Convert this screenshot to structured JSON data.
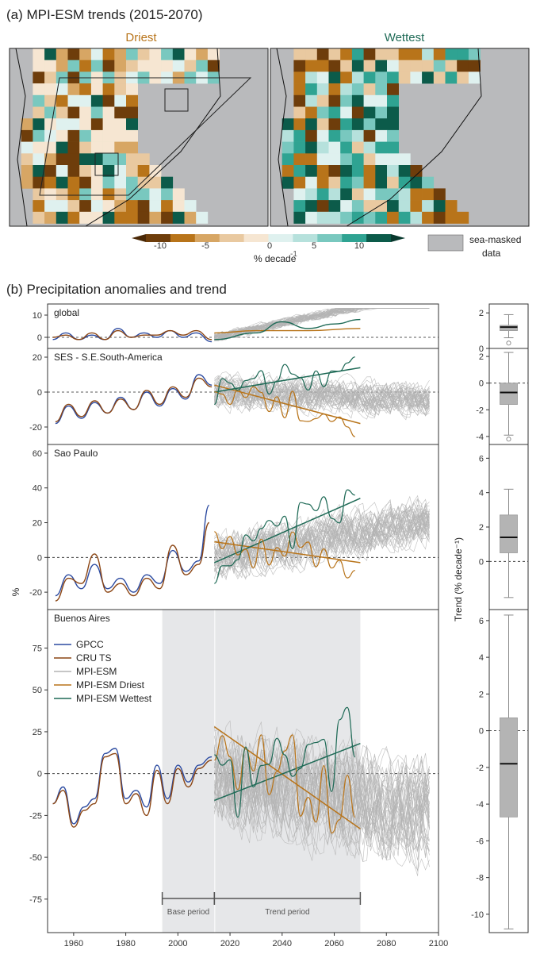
{
  "panel_a": {
    "title": "(a) MPI-ESM trends (2015-2070)",
    "map_titles": [
      "Driest",
      "Wettest"
    ],
    "colorbar": {
      "ticks": [
        "-10",
        "-5",
        "0",
        "5",
        "10"
      ],
      "label": "% decade",
      "label_exp": "-1",
      "sea_label_1": "sea-masked",
      "sea_label_2": "data"
    }
  },
  "panel_b": {
    "title": "(b) Precipitation anomalies and trend",
    "y_label": "%",
    "right_y_label": "Trend (% decade⁻¹)",
    "period_labels": {
      "base": "Base period",
      "trend": "Trend period"
    }
  },
  "colors": {
    "gpcc": "#2b4aa0",
    "cru": "#8b4513",
    "ensemble": "#b4b4b4",
    "driest": "#b8741a",
    "wettest": "#1e6a56",
    "sea": "#b9babc"
  },
  "chart_data": [
    {
      "type": "line",
      "title": "global",
      "x_range": [
        1950,
        2100
      ],
      "ylim": [
        -5,
        15
      ],
      "yticks": [
        0,
        10
      ],
      "series": [
        {
          "name": "GPCC",
          "x": [
            1952,
            1957,
            1962,
            1967,
            1972,
            1977,
            1982,
            1987,
            1992,
            1997,
            2002,
            2007,
            2013
          ],
          "y": [
            -1,
            2,
            -1,
            1,
            -1,
            4,
            0,
            2,
            0,
            3,
            0,
            2,
            -2
          ]
        },
        {
          "name": "CRU TS",
          "x": [
            1952,
            1957,
            1962,
            1967,
            1972,
            1977,
            1982,
            1987,
            1992,
            1997,
            2002,
            2007,
            2013
          ],
          "y": [
            0,
            1,
            -1,
            2,
            -1,
            3,
            0,
            1,
            1,
            3,
            1,
            3,
            -1
          ]
        },
        {
          "name": "MPI-ESM Driest",
          "x": [
            2014,
            2030,
            2050,
            2070
          ],
          "y": [
            2,
            3,
            3,
            4
          ]
        },
        {
          "name": "MPI-ESM Wettest",
          "x": [
            2014,
            2030,
            2040,
            2050,
            2060,
            2070
          ],
          "y": [
            -1,
            2,
            7,
            4,
            6,
            8
          ]
        }
      ],
      "boxplot": {
        "ylim": [
          0,
          2.5
        ],
        "yticks": [
          0,
          2
        ],
        "whisker_low": 0.6,
        "q1": 1.0,
        "median": 1.2,
        "q3": 1.3,
        "whisker_high": 1.9,
        "outliers": [
          0.3
        ]
      }
    },
    {
      "type": "line",
      "title": "SES - S.E.South-America",
      "x_range": [
        1950,
        2100
      ],
      "ylim": [
        -30,
        25
      ],
      "yticks": [
        -20,
        0,
        20
      ],
      "series": [
        {
          "name": "GPCC",
          "x": [
            1953,
            1958,
            1963,
            1968,
            1973,
            1978,
            1983,
            1988,
            1993,
            1998,
            2003,
            2008,
            2013
          ],
          "y": [
            -18,
            -8,
            -15,
            -6,
            -12,
            -3,
            -10,
            0,
            -8,
            2,
            -4,
            10,
            4
          ]
        },
        {
          "name": "CRU TS",
          "x": [
            1953,
            1958,
            1963,
            1968,
            1973,
            1978,
            1983,
            1988,
            1993,
            1998,
            2003,
            2008,
            2013
          ],
          "y": [
            -17,
            -7,
            -14,
            -5,
            -12,
            -4,
            -10,
            1,
            -7,
            3,
            -3,
            8,
            3
          ]
        },
        {
          "name": "MPI-ESM Driest",
          "x": [
            2014,
            2070
          ],
          "y": [
            4,
            -18
          ]
        },
        {
          "name": "MPI-ESM Wettest",
          "x": [
            2014,
            2070
          ],
          "y": [
            0,
            14
          ]
        }
      ],
      "boxplot": {
        "ylim": [
          -4.6,
          2.6
        ],
        "yticks": [
          -4,
          -2,
          0,
          2
        ],
        "whisker_low": -3.9,
        "q1": -1.6,
        "median": -0.7,
        "q3": 0.0,
        "whisker_high": 2.3,
        "outliers": [
          -4.2
        ]
      }
    },
    {
      "type": "line",
      "title": "Sao Paulo",
      "x_range": [
        1950,
        2100
      ],
      "ylim": [
        -30,
        65
      ],
      "yticks": [
        -20,
        0,
        20,
        40,
        60
      ],
      "series": [
        {
          "name": "GPCC",
          "x": [
            1953,
            1958,
            1963,
            1968,
            1973,
            1978,
            1983,
            1988,
            1993,
            1998,
            2003,
            2008,
            2012
          ],
          "y": [
            -22,
            -10,
            -18,
            -4,
            -18,
            -12,
            -20,
            -10,
            -15,
            4,
            -8,
            -2,
            30
          ]
        },
        {
          "name": "CRU TS",
          "x": [
            1953,
            1958,
            1963,
            1968,
            1973,
            1978,
            1983,
            1988,
            1993,
            1998,
            2003,
            2008,
            2012
          ],
          "y": [
            -25,
            -12,
            -15,
            2,
            -20,
            -15,
            -22,
            -12,
            -18,
            7,
            -10,
            -4,
            20
          ]
        },
        {
          "name": "MPI-ESM Driest",
          "x": [
            2014,
            2070
          ],
          "y": [
            9,
            -3
          ]
        },
        {
          "name": "MPI-ESM Wettest",
          "x": [
            2014,
            2070
          ],
          "y": [
            -3,
            34
          ]
        }
      ],
      "boxplot": {
        "ylim": [
          -2.8,
          6.8
        ],
        "yticks": [
          0,
          2,
          4,
          6
        ],
        "whisker_low": -2.1,
        "q1": 0.5,
        "median": 1.4,
        "q3": 2.7,
        "whisker_high": 4.2,
        "outliers": []
      }
    },
    {
      "type": "line",
      "title": "Buenos Aires",
      "x_range": [
        1950,
        2100
      ],
      "ylim": [
        -95,
        98
      ],
      "yticks": [
        -75,
        -50,
        -25,
        0,
        25,
        50,
        75
      ],
      "xticks": [
        1960,
        1980,
        2000,
        2020,
        2040,
        2060,
        2080,
        2100
      ],
      "series": [
        {
          "name": "GPCC",
          "x": [
            1952,
            1956,
            1960,
            1964,
            1968,
            1972,
            1976,
            1980,
            1984,
            1988,
            1992,
            1996,
            2000,
            2004,
            2008,
            2013
          ],
          "y": [
            -18,
            -8,
            -30,
            -20,
            -15,
            12,
            15,
            -15,
            -10,
            -20,
            5,
            -15,
            5,
            -5,
            5,
            10
          ]
        },
        {
          "name": "CRU TS",
          "x": [
            1952,
            1956,
            1960,
            1964,
            1968,
            1972,
            1976,
            1980,
            1984,
            1988,
            1992,
            1996,
            2000,
            2004,
            2008,
            2013
          ],
          "y": [
            -18,
            -10,
            -32,
            -22,
            -18,
            10,
            12,
            -18,
            -12,
            -25,
            2,
            -18,
            3,
            -8,
            3,
            8
          ]
        },
        {
          "name": "MPI-ESM",
          "x": [],
          "y": []
        },
        {
          "name": "MPI-ESM Driest",
          "x": [
            2014,
            2070
          ],
          "y": [
            28,
            -33
          ]
        },
        {
          "name": "MPI-ESM Wettest",
          "x": [
            2014,
            2070
          ],
          "y": [
            -16,
            18
          ]
        }
      ],
      "boxplot": {
        "ylim": [
          -11,
          6.6
        ],
        "yticks": [
          -10,
          -8,
          -6,
          -4,
          -2,
          0,
          2,
          4,
          6
        ],
        "whisker_low": -10.8,
        "q1": -4.7,
        "median": -1.8,
        "q3": 0.7,
        "whisker_high": 6.3,
        "outliers": []
      }
    }
  ]
}
